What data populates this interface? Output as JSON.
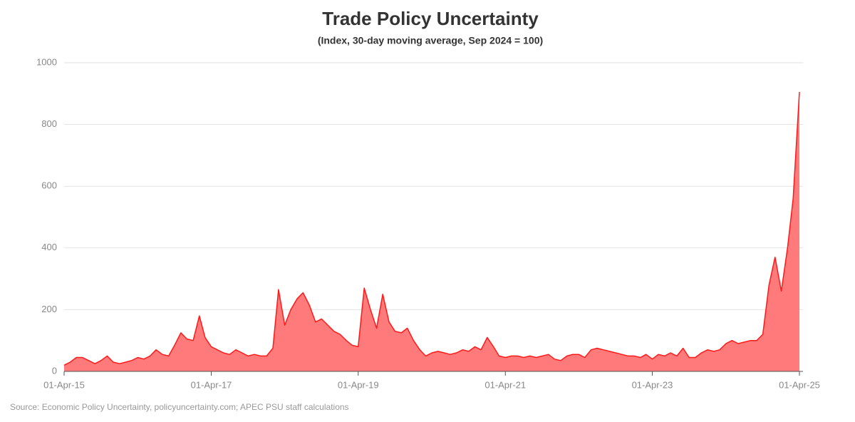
{
  "chart_data": {
    "type": "area",
    "title": "Trade Policy Uncertainty",
    "subtitle": "(Index, 30-day moving average, Sep 2024 = 100)",
    "source": "Source: Economic Policy Uncertainty, policyuncertainty.com; APEC PSU staff calculations",
    "color": "#ff1a1a",
    "fill": "#ff7b7b",
    "grid": true,
    "ylim": [
      0,
      1000
    ],
    "yticks": [
      0,
      200,
      400,
      600,
      800,
      1000
    ],
    "xlim": [
      "2015-04-01",
      "2025-04-01"
    ],
    "xticks": [
      {
        "value": "2015-04-01",
        "label": "01-Apr-15"
      },
      {
        "value": "2017-04-01",
        "label": "01-Apr-17"
      },
      {
        "value": "2019-04-01",
        "label": "01-Apr-19"
      },
      {
        "value": "2021-04-01",
        "label": "01-Apr-21"
      },
      {
        "value": "2023-04-01",
        "label": "01-Apr-23"
      },
      {
        "value": "2025-04-01",
        "label": "01-Apr-25"
      }
    ],
    "x": [
      "2015-04-01",
      "2015-05-01",
      "2015-06-01",
      "2015-07-01",
      "2015-08-01",
      "2015-09-01",
      "2015-10-01",
      "2015-11-01",
      "2015-12-01",
      "2016-01-01",
      "2016-02-01",
      "2016-03-01",
      "2016-04-01",
      "2016-05-01",
      "2016-06-01",
      "2016-07-01",
      "2016-08-01",
      "2016-09-01",
      "2016-10-01",
      "2016-11-01",
      "2016-12-01",
      "2017-01-01",
      "2017-02-01",
      "2017-03-01",
      "2017-04-01",
      "2017-05-01",
      "2017-06-01",
      "2017-07-01",
      "2017-08-01",
      "2017-09-01",
      "2017-10-01",
      "2017-11-01",
      "2017-12-01",
      "2018-01-01",
      "2018-02-01",
      "2018-03-01",
      "2018-04-01",
      "2018-05-01",
      "2018-06-01",
      "2018-07-01",
      "2018-08-01",
      "2018-09-01",
      "2018-10-01",
      "2018-11-01",
      "2018-12-01",
      "2019-01-01",
      "2019-02-01",
      "2019-03-01",
      "2019-04-01",
      "2019-05-01",
      "2019-06-01",
      "2019-07-01",
      "2019-08-01",
      "2019-09-01",
      "2019-10-01",
      "2019-11-01",
      "2019-12-01",
      "2020-01-01",
      "2020-02-01",
      "2020-03-01",
      "2020-04-01",
      "2020-05-01",
      "2020-06-01",
      "2020-07-01",
      "2020-08-01",
      "2020-09-01",
      "2020-10-01",
      "2020-11-01",
      "2020-12-01",
      "2021-01-01",
      "2021-02-01",
      "2021-03-01",
      "2021-04-01",
      "2021-05-01",
      "2021-06-01",
      "2021-07-01",
      "2021-08-01",
      "2021-09-01",
      "2021-10-01",
      "2021-11-01",
      "2021-12-01",
      "2022-01-01",
      "2022-02-01",
      "2022-03-01",
      "2022-04-01",
      "2022-05-01",
      "2022-06-01",
      "2022-07-01",
      "2022-08-01",
      "2022-09-01",
      "2022-10-01",
      "2022-11-01",
      "2022-12-01",
      "2023-01-01",
      "2023-02-01",
      "2023-03-01",
      "2023-04-01",
      "2023-05-01",
      "2023-06-01",
      "2023-07-01",
      "2023-08-01",
      "2023-09-01",
      "2023-10-01",
      "2023-11-01",
      "2023-12-01",
      "2024-01-01",
      "2024-02-01",
      "2024-03-01",
      "2024-04-01",
      "2024-05-01",
      "2024-06-01",
      "2024-07-01",
      "2024-08-01",
      "2024-09-01",
      "2024-10-01",
      "2024-11-01",
      "2024-12-01",
      "2025-01-01",
      "2025-02-01",
      "2025-03-01",
      "2025-04-01"
    ],
    "values": [
      20,
      30,
      45,
      45,
      35,
      25,
      35,
      50,
      30,
      25,
      30,
      35,
      45,
      40,
      50,
      70,
      55,
      50,
      85,
      125,
      105,
      100,
      180,
      110,
      80,
      70,
      60,
      55,
      70,
      60,
      50,
      55,
      50,
      50,
      75,
      265,
      150,
      200,
      235,
      255,
      215,
      160,
      170,
      150,
      130,
      120,
      100,
      85,
      80,
      270,
      200,
      140,
      250,
      160,
      130,
      125,
      140,
      100,
      70,
      50,
      60,
      65,
      60,
      55,
      60,
      70,
      65,
      80,
      70,
      110,
      80,
      50,
      45,
      50,
      50,
      45,
      50,
      45,
      50,
      55,
      40,
      35,
      50,
      55,
      55,
      45,
      70,
      75,
      70,
      65,
      60,
      55,
      50,
      50,
      45,
      55,
      40,
      55,
      50,
      60,
      50,
      75,
      45,
      45,
      60,
      70,
      65,
      70,
      90,
      100,
      90,
      95,
      100,
      100,
      120,
      280,
      370,
      260,
      400,
      560,
      905
    ]
  }
}
